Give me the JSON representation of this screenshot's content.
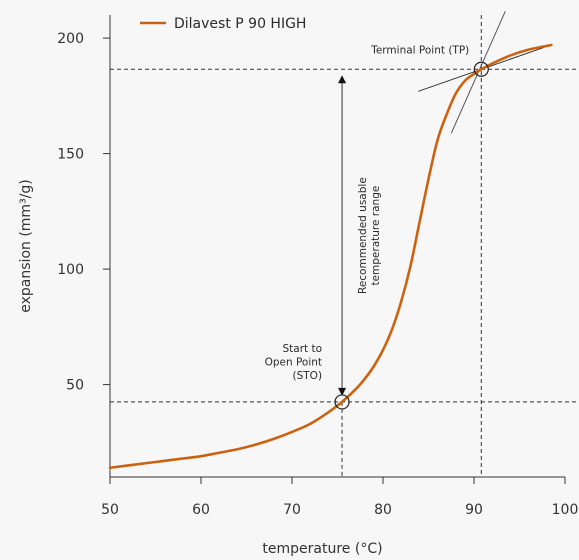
{
  "chart_data": {
    "type": "line",
    "title": "",
    "xlabel": "temperature (°C)",
    "ylabel": "expansion (mm³/g)",
    "xlim": [
      50,
      100
    ],
    "ylim": [
      10,
      210
    ],
    "x_ticks": [
      50,
      60,
      70,
      80,
      90,
      100
    ],
    "y_ticks": [
      50,
      100,
      150,
      200
    ],
    "x_tick_labels": [
      "50",
      "60",
      "70",
      "80",
      "90",
      "100"
    ],
    "y_tick_labels": [
      "50",
      "100",
      "150",
      "200"
    ],
    "grid": false,
    "legend_position": "top-left",
    "series": [
      {
        "name": "Dilavest P 90 HIGH",
        "color": "#cc6210",
        "x": [
          50,
          52,
          54,
          56,
          58,
          60,
          62,
          64,
          66,
          68,
          70,
          72,
          74,
          75.5,
          77,
          78,
          79,
          80,
          81,
          82,
          83,
          84,
          85,
          86,
          87,
          88,
          89,
          90,
          90.8,
          92,
          94,
          96,
          98.5
        ],
        "y": [
          14,
          15,
          16,
          17,
          18,
          19,
          20.5,
          22,
          24,
          26.5,
          29.5,
          33,
          38,
          42.5,
          48,
          52.5,
          58,
          65,
          74,
          86,
          101,
          120,
          139,
          156,
          167,
          176,
          181.5,
          184.5,
          186.5,
          189,
          192.5,
          195,
          197
        ]
      }
    ],
    "annotations": {
      "sto": {
        "x": 75.5,
        "y": 42.5,
        "label_lines": [
          "Start to",
          "Open Point",
          "(STO)"
        ]
      },
      "tp": {
        "x": 90.8,
        "y": 186.5,
        "label": "Terminal Point (TP)"
      },
      "range_label_lines": [
        "Recommended usable",
        "temperature range"
      ]
    }
  }
}
